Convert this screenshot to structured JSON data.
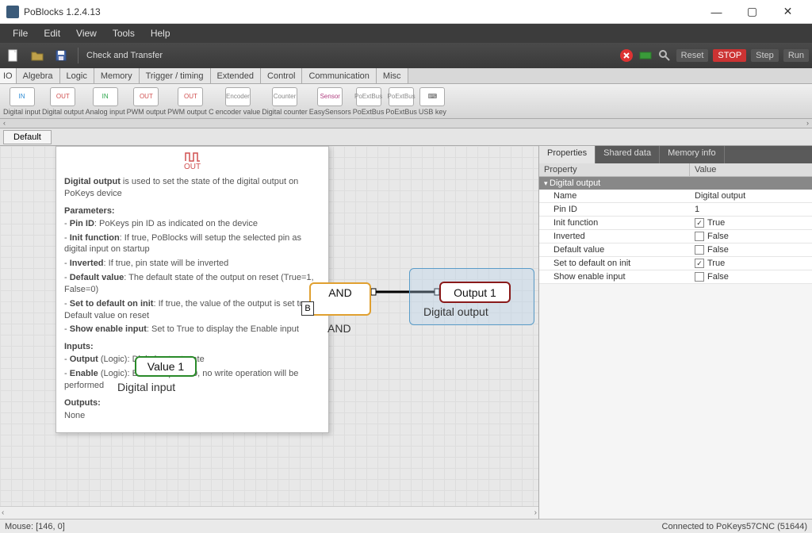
{
  "window": {
    "title": "PoBlocks 1.2.4.13",
    "min": "—",
    "max": "▢",
    "close": "✕"
  },
  "menubar": [
    "File",
    "Edit",
    "View",
    "Tools",
    "Help"
  ],
  "toolbar1": {
    "check_transfer": "Check and Transfer",
    "right": {
      "reset": "Reset",
      "stop": "STOP",
      "step": "Step",
      "run": "Run"
    }
  },
  "category_tabs": [
    "IO",
    "Algebra",
    "Logic",
    "Memory",
    "Trigger / timing",
    "Extended",
    "Control",
    "Communication",
    "Misc"
  ],
  "ribbon": [
    {
      "label": "Digital input",
      "icon": "IN",
      "color": "#2a8ad4"
    },
    {
      "label": "Digital output",
      "icon": "OUT",
      "color": "#d05050"
    },
    {
      "label": "Analog input",
      "icon": "IN",
      "color": "#2aa54a"
    },
    {
      "label": "PWM output",
      "icon": "OUT",
      "color": "#d05050"
    },
    {
      "label": "PWM output C",
      "icon": "OUT",
      "color": "#d05050"
    },
    {
      "label": "encoder value",
      "icon": "Encoder",
      "color": "#888"
    },
    {
      "label": "Digital counter",
      "icon": "Counter",
      "color": "#888"
    },
    {
      "label": "EasySensors",
      "icon": "Sensor",
      "color": "#b04080"
    },
    {
      "label": "PoExtBus",
      "icon": "PoExtBus",
      "color": "#888"
    },
    {
      "label": "PoExtBus",
      "icon": "PoExtBus",
      "color": "#888"
    },
    {
      "label": "USB key",
      "icon": "⌨",
      "color": "#555"
    }
  ],
  "sheet_tab": "Default",
  "tooltip": {
    "icon_label": "OUT",
    "title_bold": "Digital output",
    "title_rest": " is used to set the state of the digital output on PoKeys device",
    "params_header": "Parameters:",
    "params": [
      {
        "k": "Pin ID",
        "v": ": PoKeys pin ID as indicated on the device"
      },
      {
        "k": "Init function",
        "v": ": If true, PoBlocks will setup the selected pin as digital input on startup"
      },
      {
        "k": "Inverted",
        "v": ": If true, pin state will be inverted"
      },
      {
        "k": "Default value",
        "v": ": The default state of the output on reset (True=1, False=0)"
      },
      {
        "k": "Set to default on init",
        "v": ": If true, the value of the output is set to Default value on reset"
      },
      {
        "k": "Show enable input",
        "v": ": Set to True to display the Enable input"
      }
    ],
    "inputs_header": "Inputs:",
    "inputs": [
      {
        "k": "Output",
        "v": " (Logic): Digital output state"
      },
      {
        "k": "Enable",
        "v": " (Logic): Enable input. If 0, no write operation will be performed"
      }
    ],
    "outputs_header": "Outputs:",
    "outputs_none": "None"
  },
  "nodes": {
    "value": {
      "text": "Value 1",
      "label": "Digital input"
    },
    "and": {
      "text": "AND",
      "label": "AND",
      "port_b": "B"
    },
    "out": {
      "text": "Output 1",
      "label": "Digital output"
    }
  },
  "side_tabs": [
    "Properties",
    "Shared data",
    "Memory info"
  ],
  "properties": {
    "col_property": "Property",
    "col_value": "Value",
    "group": "Digital output",
    "rows": [
      {
        "k": "Name",
        "v": "Digital output",
        "cb": null
      },
      {
        "k": "Pin ID",
        "v": "1",
        "cb": null
      },
      {
        "k": "Init function",
        "v": "True",
        "cb": true
      },
      {
        "k": "Inverted",
        "v": "False",
        "cb": false
      },
      {
        "k": "Default value",
        "v": "False",
        "cb": false
      },
      {
        "k": "Set to default on init",
        "v": "True",
        "cb": true
      },
      {
        "k": "Show enable input",
        "v": "False",
        "cb": false
      }
    ]
  },
  "statusbar": {
    "mouse": "Mouse: [146, 0]",
    "connection": "Connected to PoKeys57CNC (51644)"
  }
}
